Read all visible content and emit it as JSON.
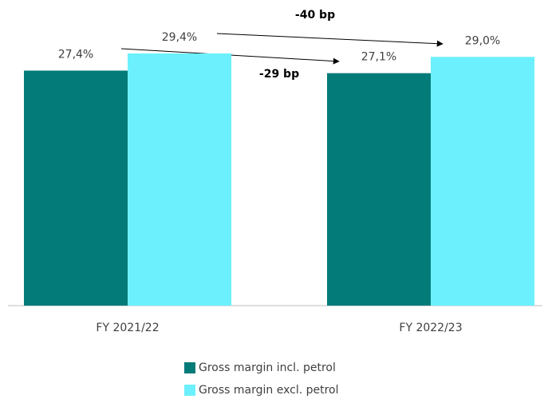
{
  "chart_data": {
    "type": "bar",
    "categories": [
      "FY 2021/22",
      "FY 2022/23"
    ],
    "series": [
      {
        "name": "Gross margin incl. petrol",
        "color": "#037b79",
        "values": [
          27.4,
          27.1
        ],
        "value_labels": [
          "27,4%",
          "27,1%"
        ]
      },
      {
        "name": "Gross margin excl. petrol",
        "color": "#6cf0fd",
        "values": [
          29.4,
          29.0
        ],
        "value_labels": [
          "29,4%",
          "29,0%"
        ]
      }
    ],
    "ylim": [
      0,
      34.7
    ],
    "annotations": [
      {
        "text": "-40 bp"
      },
      {
        "text": "-29 bp"
      }
    ]
  }
}
